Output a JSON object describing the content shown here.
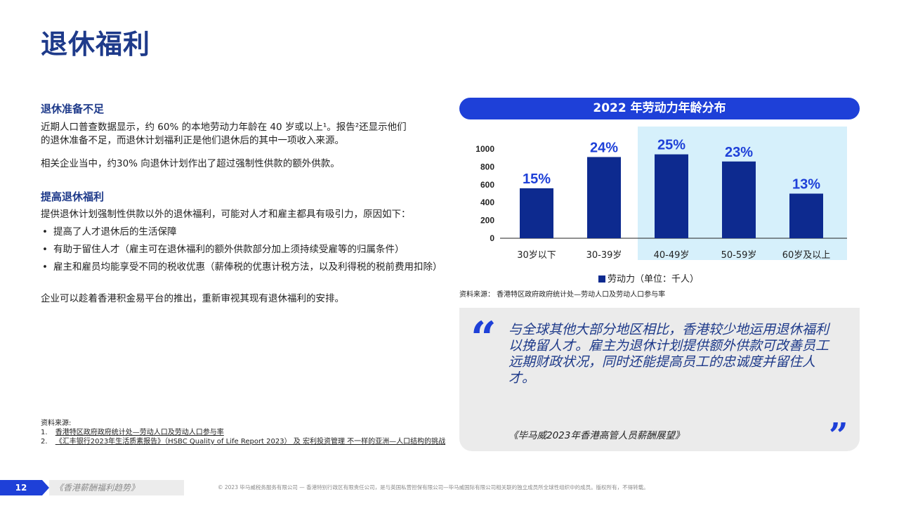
{
  "page": {
    "title": "退休福利"
  },
  "left": {
    "section1": {
      "heading": "退休准备不足",
      "para1_line1": "近期人口普查数据显示，约 60% 的本地劳动力年龄在 40 岁或以上¹。报告²还显示他们",
      "para1_line2": "的退休准备不足，而退休计划福利正是他们退休后的其中一项收入来源。",
      "para2": "相关企业当中，约30% 向退休计划作出了超过强制性供款的额外供款。"
    },
    "section2": {
      "heading": "提高退休福利",
      "intro": "提供退休计划强制性供款以外的退休福利，可能对人才和雇主都具有吸引力，原因如下：",
      "bullets": [
        "提高了人才退休后的生活保障",
        "有助于留住人才（雇主可在退休福利的额外供款部分加上须持续受雇等的归属条件）",
        "雇主和雇员均能享受不同的税收优惠（薪俸税的优惠计税方法，以及利得税的税前费用扣除）"
      ],
      "closing": "企业可以趁着香港积金易平台的推出，重新审视其现有退休福利的安排。"
    },
    "sources": {
      "label": "资料来源:",
      "item1_num": "1.",
      "item1": "香港特区政府政府统计处—劳动人口及劳动人口参与率",
      "item2_num": "2.",
      "item2": "《汇丰银行2023年生活质素报告》（HSBC Quality of Life Report 2023） 及 宏利投资管理 不一样的亚洲—人口结构的挑战"
    }
  },
  "chart_data": {
    "type": "bar",
    "title": "2022 年劳动力年龄分布",
    "categories": [
      "30岁以下",
      "30-39岁",
      "40-49岁",
      "50-59岁",
      "60岁及以上"
    ],
    "series": [
      {
        "name": "劳动力（单位：千人）",
        "values": [
          560,
          910,
          940,
          860,
          500
        ]
      }
    ],
    "data_labels": [
      "15%",
      "24%",
      "25%",
      "23%",
      "13%"
    ],
    "yticks": [
      0,
      200,
      400,
      600,
      800,
      1000
    ],
    "ylim": [
      0,
      1000
    ],
    "highlight_categories": [
      "40-49岁",
      "50-59岁",
      "60岁及以上"
    ],
    "legend": "劳动力（单位：千人）",
    "legend_position": "bottom",
    "source": "资料来源：  香港特区政府政府统计处—劳动人口及劳动人口参与率",
    "colors": {
      "bar": "#0d2a8f",
      "label": "#1e40d8",
      "highlight": "#d6f0fb",
      "header": "#1e40d8"
    }
  },
  "quote": {
    "open_mark": "“",
    "close_mark": "”",
    "text": "与全球其他大部分地区相比，香港较少地运用退休福利以挽留人才。雇主为退休计划提供额外供款可改善员工远期财政状况，同时还能提高员工的忠诚度并留住人才。",
    "source": "《毕马威2023年香港高管人员薪酬展望》"
  },
  "footer": {
    "page_number": "12",
    "publication": "《香港薪酬福利趋势》",
    "copyright": "© 2023 毕马威税务服务有限公司 — 香港特别行政区有限责任公司，是与英国私营担保有限公司—毕马威国际有限公司相关联的独立成员所全球性组织中的成员。版权所有，不得转载。"
  }
}
